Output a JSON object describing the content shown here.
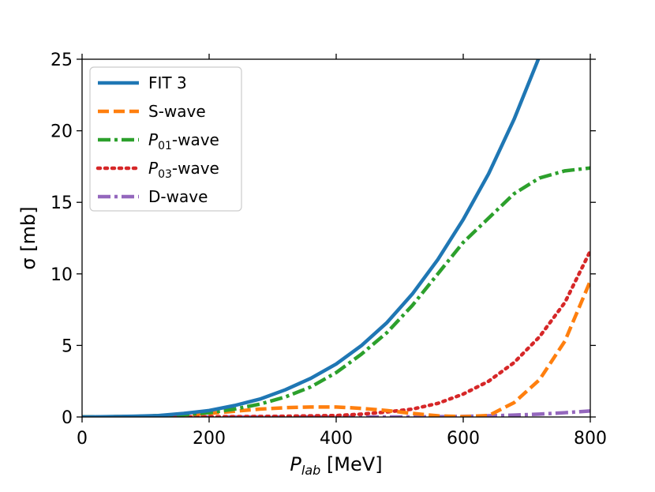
{
  "chart_data": {
    "type": "line",
    "title": "",
    "xlabel_main": "P",
    "xlabel_sub": "lab",
    "xlabel_unit": " [MeV]",
    "ylabel": "σ [mb]",
    "xlim": [
      0,
      800
    ],
    "ylim": [
      0,
      25
    ],
    "xticks": [
      0,
      200,
      400,
      600,
      800
    ],
    "xtick_labels": [
      "0",
      "200",
      "400",
      "600",
      "800"
    ],
    "yticks": [
      0,
      5,
      10,
      15,
      20,
      25
    ],
    "ytick_labels": [
      "0",
      "5",
      "10",
      "15",
      "20",
      "25"
    ],
    "grid": false,
    "legend_position": "top-left",
    "series": [
      {
        "name": "FIT 3",
        "legend_main": "FIT 3",
        "legend_sub": "",
        "legend_rest": "",
        "color": "#1f77b4",
        "style": "solid",
        "x": [
          0,
          40,
          80,
          120,
          160,
          200,
          240,
          280,
          320,
          360,
          400,
          440,
          480,
          520,
          560,
          600,
          640,
          680,
          720
        ],
        "y": [
          0.0,
          0.02,
          0.05,
          0.1,
          0.25,
          0.45,
          0.8,
          1.25,
          1.9,
          2.7,
          3.7,
          5.0,
          6.6,
          8.6,
          11.0,
          13.8,
          17.0,
          20.8,
          25.2
        ]
      },
      {
        "name": "S-wave",
        "legend_main": "S-wave",
        "legend_sub": "",
        "legend_rest": "",
        "color": "#ff7f0e",
        "style": "dashed",
        "x": [
          0,
          80,
          160,
          200,
          240,
          280,
          320,
          360,
          400,
          440,
          480,
          520,
          560,
          600,
          640,
          680,
          720,
          760,
          800
        ],
        "y": [
          0.0,
          0.03,
          0.15,
          0.25,
          0.4,
          0.55,
          0.65,
          0.7,
          0.7,
          0.6,
          0.45,
          0.25,
          0.08,
          0.02,
          0.1,
          1.0,
          2.6,
          5.3,
          9.5
        ]
      },
      {
        "name": "P01-wave",
        "legend_main": "P",
        "legend_sub": "01",
        "legend_rest": "-wave",
        "color": "#2ca02c",
        "style": "dashdot",
        "x": [
          0,
          80,
          160,
          200,
          240,
          280,
          320,
          360,
          400,
          440,
          480,
          520,
          560,
          600,
          640,
          680,
          720,
          760,
          800
        ],
        "y": [
          0.0,
          0.03,
          0.15,
          0.3,
          0.55,
          0.9,
          1.4,
          2.1,
          3.1,
          4.4,
          5.9,
          7.8,
          10.0,
          12.2,
          13.9,
          15.6,
          16.7,
          17.2,
          17.4
        ]
      },
      {
        "name": "P03-wave",
        "legend_main": "P",
        "legend_sub": "03",
        "legend_rest": "-wave",
        "color": "#d62728",
        "style": "dotted",
        "x": [
          0,
          80,
          160,
          240,
          320,
          400,
          440,
          480,
          520,
          560,
          600,
          640,
          680,
          720,
          760,
          800
        ],
        "y": [
          0.0,
          0.0,
          0.01,
          0.02,
          0.05,
          0.1,
          0.2,
          0.35,
          0.55,
          0.95,
          1.6,
          2.5,
          3.8,
          5.6,
          8.0,
          11.6
        ]
      },
      {
        "name": "D-wave",
        "legend_main": "D-wave",
        "legend_sub": "",
        "legend_rest": "",
        "color": "#9467bd",
        "style": "dashdot",
        "x": [
          0,
          200,
          400,
          500,
          560,
          600,
          640,
          680,
          720,
          760,
          800
        ],
        "y": [
          0.0,
          0.0,
          0.0,
          0.0,
          0.02,
          0.04,
          0.08,
          0.13,
          0.2,
          0.3,
          0.42
        ]
      }
    ]
  }
}
